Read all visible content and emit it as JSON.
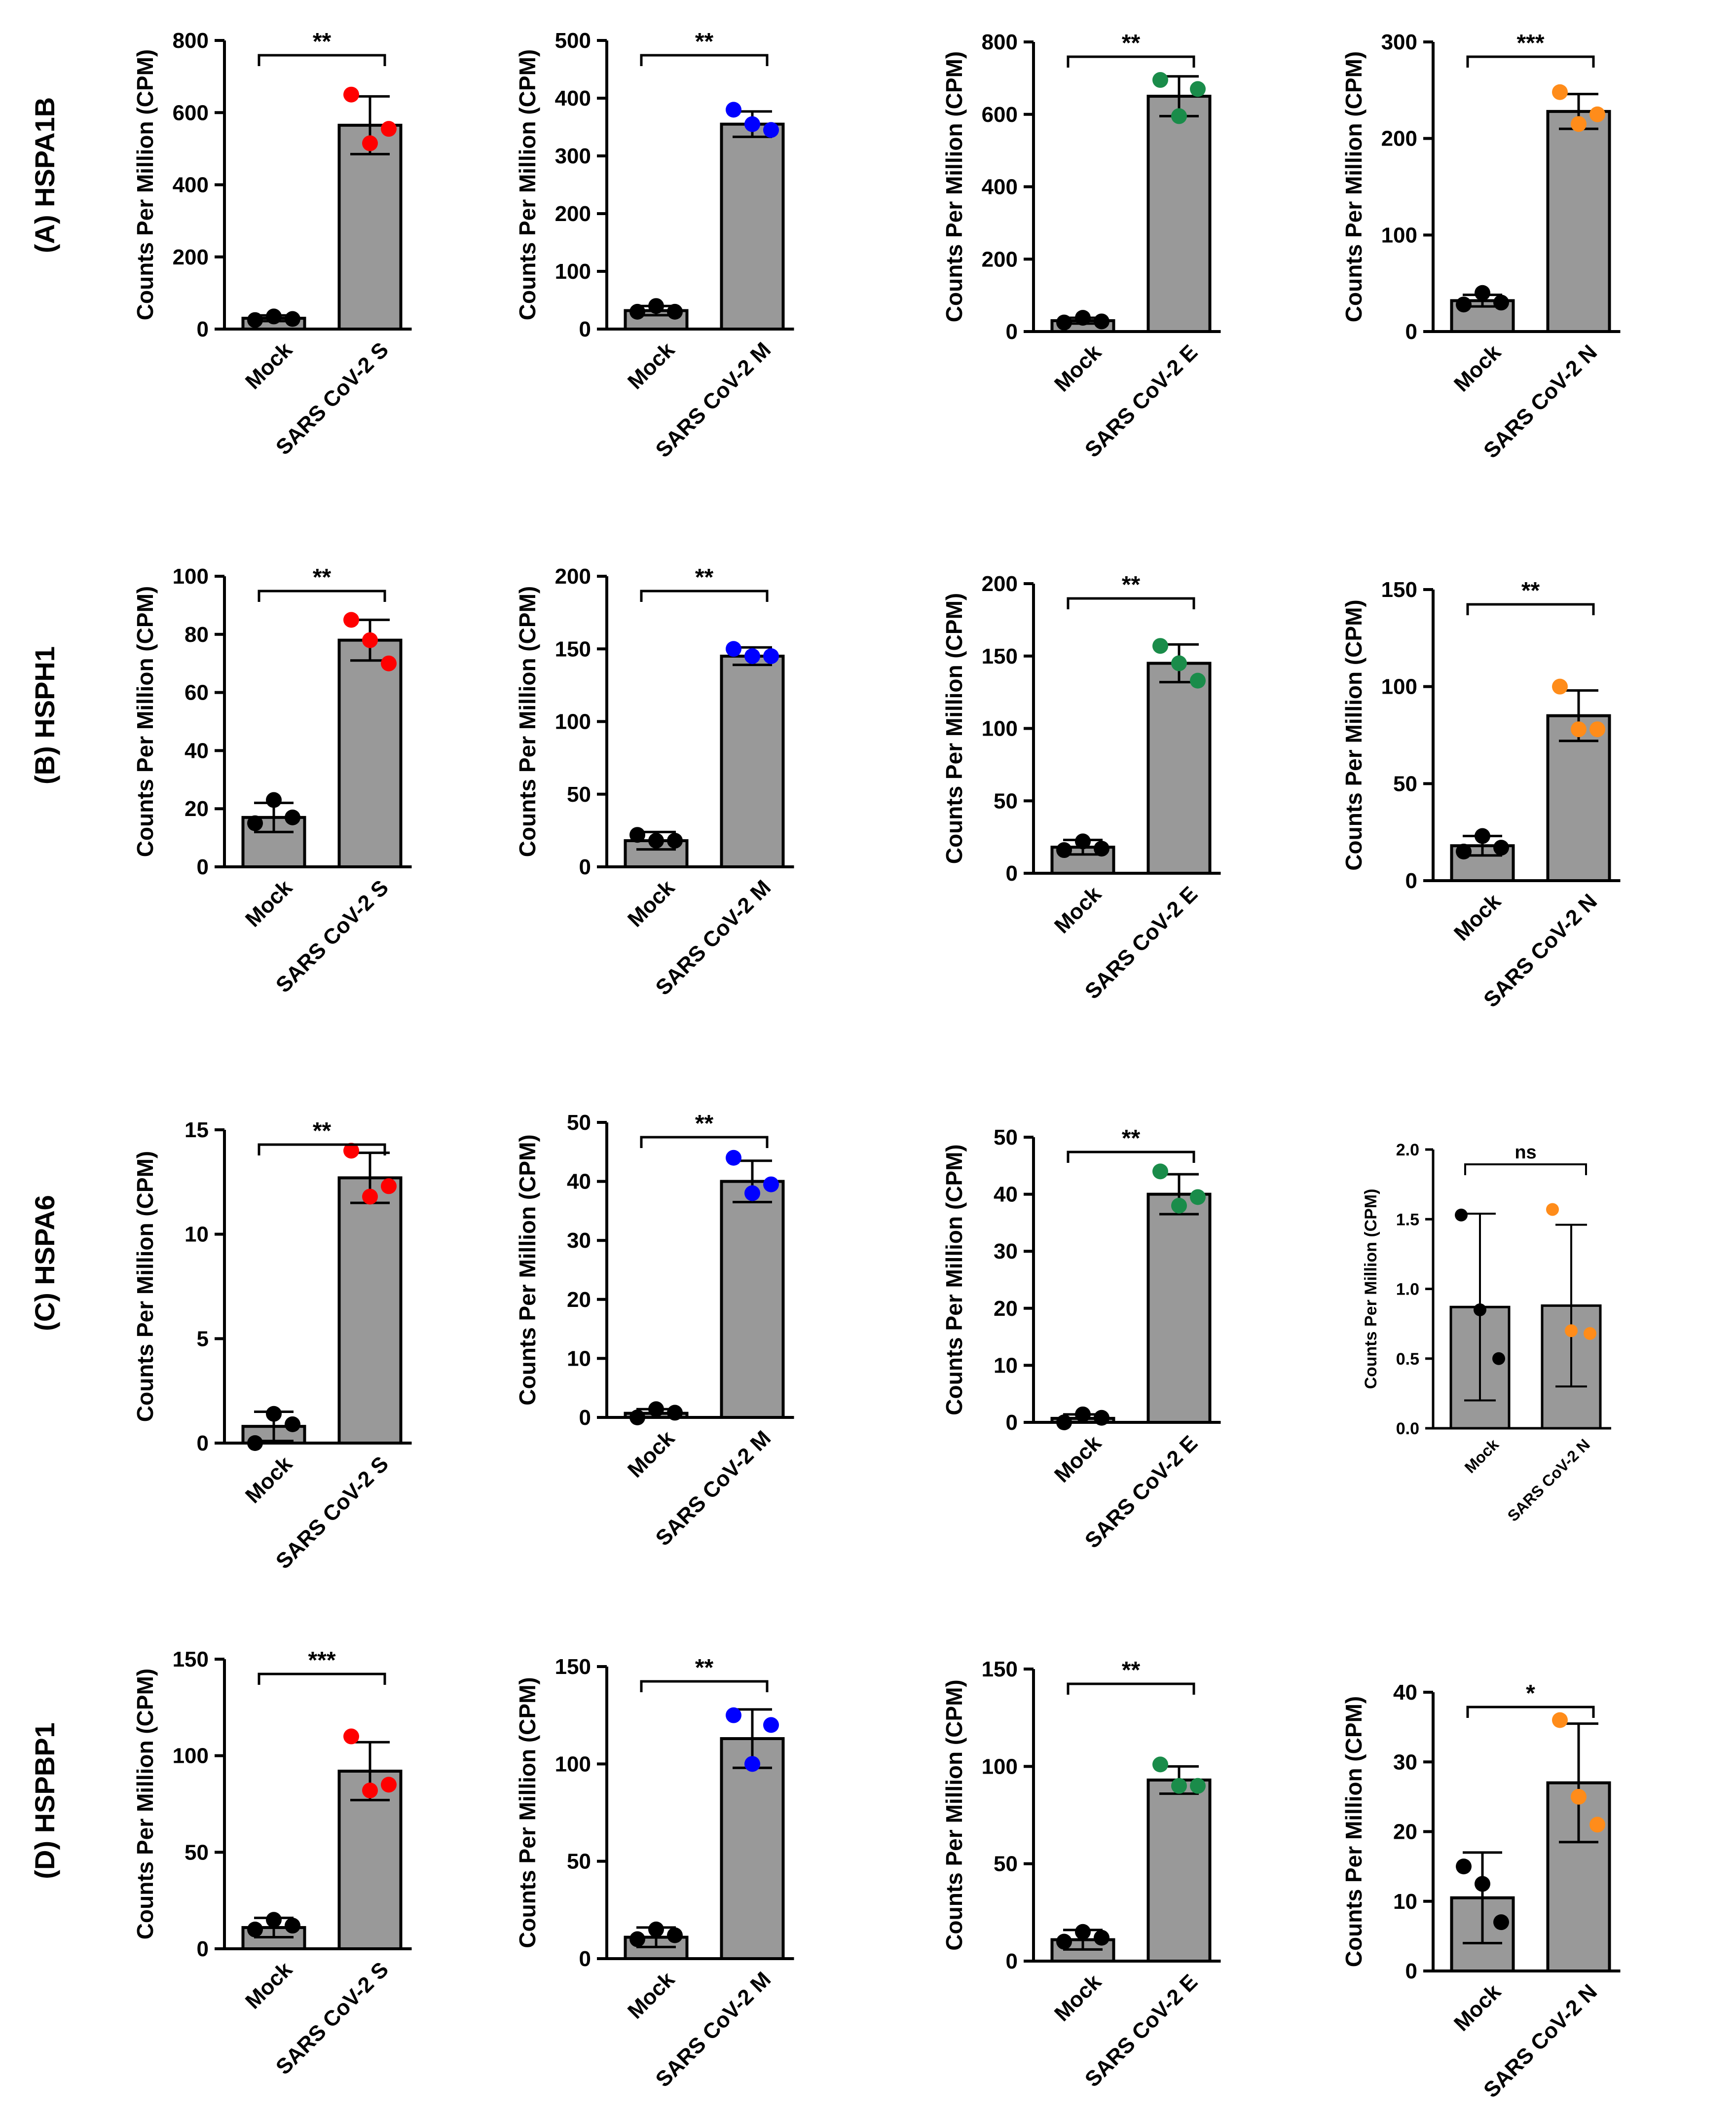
{
  "colors": {
    "bar_fill": "#999999",
    "bar_stroke": "#000000",
    "mock_point": "#000000",
    "S": "#ff0000",
    "M": "#0000ff",
    "E": "#1a8c4a",
    "N": "#ff8c1a"
  },
  "ylabel": "Counts Per Million (CPM)",
  "rows": [
    {
      "label": "(A) HSPA1B"
    },
    {
      "label": "(B) HSPH1"
    },
    {
      "label": "(C) HSPA6"
    },
    {
      "label": "(D) HSPBP1"
    }
  ],
  "chart_data": [
    {
      "type": "bar",
      "gene": "HSPA1B",
      "protein": "S",
      "categories": [
        "Mock",
        "SARS CoV-2 S"
      ],
      "values": [
        30,
        565
      ],
      "errors": [
        8,
        80
      ],
      "points": [
        [
          25,
          35,
          28
        ],
        [
          650,
          515,
          555
        ]
      ],
      "ylim": [
        0,
        800
      ],
      "ticks": [
        0,
        200,
        400,
        600,
        800
      ],
      "significance": "**",
      "ylabel": "Counts Per Million (CPM)"
    },
    {
      "type": "bar",
      "gene": "HSPA1B",
      "protein": "M",
      "categories": [
        "Mock",
        "SARS CoV-2 M"
      ],
      "values": [
        32,
        355
      ],
      "errors": [
        8,
        22
      ],
      "points": [
        [
          30,
          40,
          30
        ],
        [
          380,
          355,
          345
        ]
      ],
      "ylim": [
        0,
        500
      ],
      "ticks": [
        0,
        100,
        200,
        300,
        400,
        500
      ],
      "significance": "**",
      "ylabel": "Counts Per Million (CPM)"
    },
    {
      "type": "bar",
      "gene": "HSPA1B",
      "protein": "E",
      "categories": [
        "Mock",
        "SARS CoV-2 E"
      ],
      "values": [
        30,
        650
      ],
      "errors": [
        8,
        55
      ],
      "points": [
        [
          25,
          38,
          28
        ],
        [
          695,
          595,
          670
        ]
      ],
      "ylim": [
        0,
        800
      ],
      "ticks": [
        0,
        200,
        400,
        600,
        800
      ],
      "significance": "**",
      "ylabel": "Counts Per Million (CPM)"
    },
    {
      "type": "bar",
      "gene": "HSPA1B",
      "protein": "N",
      "categories": [
        "Mock",
        "SARS CoV-2 N"
      ],
      "values": [
        32,
        228
      ],
      "errors": [
        6,
        18
      ],
      "points": [
        [
          28,
          40,
          30
        ],
        [
          248,
          215,
          225
        ]
      ],
      "ylim": [
        0,
        300
      ],
      "ticks": [
        0,
        100,
        200,
        300
      ],
      "significance": "***",
      "ylabel": "Counts Per Million (CPM)"
    },
    {
      "type": "bar",
      "gene": "HSPH1",
      "protein": "S",
      "categories": [
        "Mock",
        "SARS CoV-2 S"
      ],
      "values": [
        17,
        78
      ],
      "errors": [
        5,
        7
      ],
      "points": [
        [
          15,
          23,
          17
        ],
        [
          85,
          78,
          70
        ]
      ],
      "ylim": [
        0,
        100
      ],
      "ticks": [
        0,
        20,
        40,
        60,
        80,
        100
      ],
      "significance": "**",
      "ylabel": "Counts Per Million (CPM)"
    },
    {
      "type": "bar",
      "gene": "HSPH1",
      "protein": "M",
      "categories": [
        "Mock",
        "SARS CoV-2 M"
      ],
      "values": [
        18,
        145
      ],
      "errors": [
        6,
        6
      ],
      "points": [
        [
          22,
          18,
          18
        ],
        [
          150,
          145,
          145
        ]
      ],
      "ylim": [
        0,
        200
      ],
      "ticks": [
        0,
        50,
        100,
        150,
        200
      ],
      "significance": "**",
      "ylabel": "Counts Per Million (CPM)"
    },
    {
      "type": "bar",
      "gene": "HSPH1",
      "protein": "E",
      "categories": [
        "Mock",
        "SARS CoV-2 E"
      ],
      "values": [
        18,
        145
      ],
      "errors": [
        5,
        13
      ],
      "points": [
        [
          16,
          22,
          17
        ],
        [
          157,
          145,
          133
        ]
      ],
      "ylim": [
        0,
        200
      ],
      "ticks": [
        0,
        50,
        100,
        150,
        200
      ],
      "significance": "**",
      "ylabel": "Counts Per Million (CPM)"
    },
    {
      "type": "bar",
      "gene": "HSPH1",
      "protein": "N",
      "categories": [
        "Mock",
        "SARS CoV-2 N"
      ],
      "values": [
        18,
        85
      ],
      "errors": [
        5,
        13
      ],
      "points": [
        [
          15,
          23,
          17
        ],
        [
          100,
          78,
          78
        ]
      ],
      "ylim": [
        0,
        150
      ],
      "ticks": [
        0,
        50,
        100,
        150
      ],
      "significance": "**",
      "ylabel": "Counts Per Million (CPM)"
    },
    {
      "type": "bar",
      "gene": "HSPA6",
      "protein": "S",
      "categories": [
        "Mock",
        "SARS CoV-2 S"
      ],
      "values": [
        0.8,
        12.7
      ],
      "errors": [
        0.7,
        1.2
      ],
      "points": [
        [
          0.0,
          1.4,
          0.9
        ],
        [
          14.0,
          11.8,
          12.3
        ]
      ],
      "ylim": [
        0,
        15
      ],
      "ticks": [
        0,
        5,
        10,
        15
      ],
      "significance": "**",
      "ylabel": "Counts Per Million (CPM)"
    },
    {
      "type": "bar",
      "gene": "HSPA6",
      "protein": "M",
      "categories": [
        "Mock",
        "SARS CoV-2 M"
      ],
      "values": [
        0.7,
        40.0
      ],
      "errors": [
        0.7,
        3.5
      ],
      "points": [
        [
          0.0,
          1.4,
          0.8
        ],
        [
          44.0,
          38.0,
          39.5
        ]
      ],
      "ylim": [
        0,
        50
      ],
      "ticks": [
        0,
        10,
        20,
        30,
        40,
        50
      ],
      "significance": "**",
      "ylabel": "Counts Per Million (CPM)"
    },
    {
      "type": "bar",
      "gene": "HSPA6",
      "protein": "E",
      "categories": [
        "Mock",
        "SARS CoV-2 E"
      ],
      "values": [
        0.7,
        40.0
      ],
      "errors": [
        0.7,
        3.5
      ],
      "points": [
        [
          0.0,
          1.4,
          0.8
        ],
        [
          44.0,
          38.0,
          39.5
        ]
      ],
      "ylim": [
        0,
        50
      ],
      "ticks": [
        0,
        10,
        20,
        30,
        40,
        50
      ],
      "significance": "**",
      "ylabel": "Counts Per Million (CPM)"
    },
    {
      "type": "bar",
      "gene": "HSPA6",
      "protein": "N",
      "categories": [
        "Mock",
        "SARS CoV-2 N"
      ],
      "values": [
        0.87,
        0.88
      ],
      "errors": [
        0.67,
        0.58
      ],
      "points": [
        [
          1.53,
          0.85,
          0.5
        ],
        [
          1.57,
          0.7,
          0.68
        ]
      ],
      "ylim": [
        0,
        2.0
      ],
      "ticks": [
        "0.0",
        "0.5",
        "1.0",
        "1.5",
        "2.0"
      ],
      "significance": "ns",
      "small": true,
      "ylabel": "Counts Per Million (CPM)"
    },
    {
      "type": "bar",
      "gene": "HSPBP1",
      "protein": "S",
      "categories": [
        "Mock",
        "SARS CoV-2 S"
      ],
      "values": [
        11,
        92
      ],
      "errors": [
        5,
        15
      ],
      "points": [
        [
          10,
          15,
          12
        ],
        [
          110,
          82,
          85
        ]
      ],
      "ylim": [
        0,
        150
      ],
      "ticks": [
        0,
        50,
        100,
        150
      ],
      "significance": "***",
      "ylabel": "Counts Per Million (CPM)"
    },
    {
      "type": "bar",
      "gene": "HSPBP1",
      "protein": "M",
      "categories": [
        "Mock",
        "SARS CoV-2 M"
      ],
      "values": [
        11,
        113
      ],
      "errors": [
        5,
        15
      ],
      "points": [
        [
          10,
          15,
          12
        ],
        [
          125,
          100,
          120
        ]
      ],
      "ylim": [
        0,
        150
      ],
      "ticks": [
        0,
        50,
        100,
        150
      ],
      "significance": "**",
      "ylabel": "Counts Per Million (CPM)"
    },
    {
      "type": "bar",
      "gene": "HSPBP1",
      "protein": "E",
      "categories": [
        "Mock",
        "SARS CoV-2 E"
      ],
      "values": [
        11,
        93
      ],
      "errors": [
        5,
        7
      ],
      "points": [
        [
          10,
          15,
          12
        ],
        [
          101,
          90,
          90
        ]
      ],
      "ylim": [
        0,
        150
      ],
      "ticks": [
        0,
        50,
        100,
        150
      ],
      "significance": "**",
      "ylabel": "Counts Per Million (CPM)"
    },
    {
      "type": "bar",
      "gene": "HSPBP1",
      "protein": "N",
      "categories": [
        "Mock",
        "SARS CoV-2 N"
      ],
      "values": [
        10.5,
        27
      ],
      "errors": [
        6.5,
        8.5
      ],
      "points": [
        [
          15,
          12.5,
          7
        ],
        [
          36,
          25,
          21
        ]
      ],
      "ylim": [
        0,
        40
      ],
      "ticks": [
        0,
        10,
        20,
        30,
        40
      ],
      "significance": "*",
      "ylabel": "Counts Per Million (CPM)"
    }
  ]
}
